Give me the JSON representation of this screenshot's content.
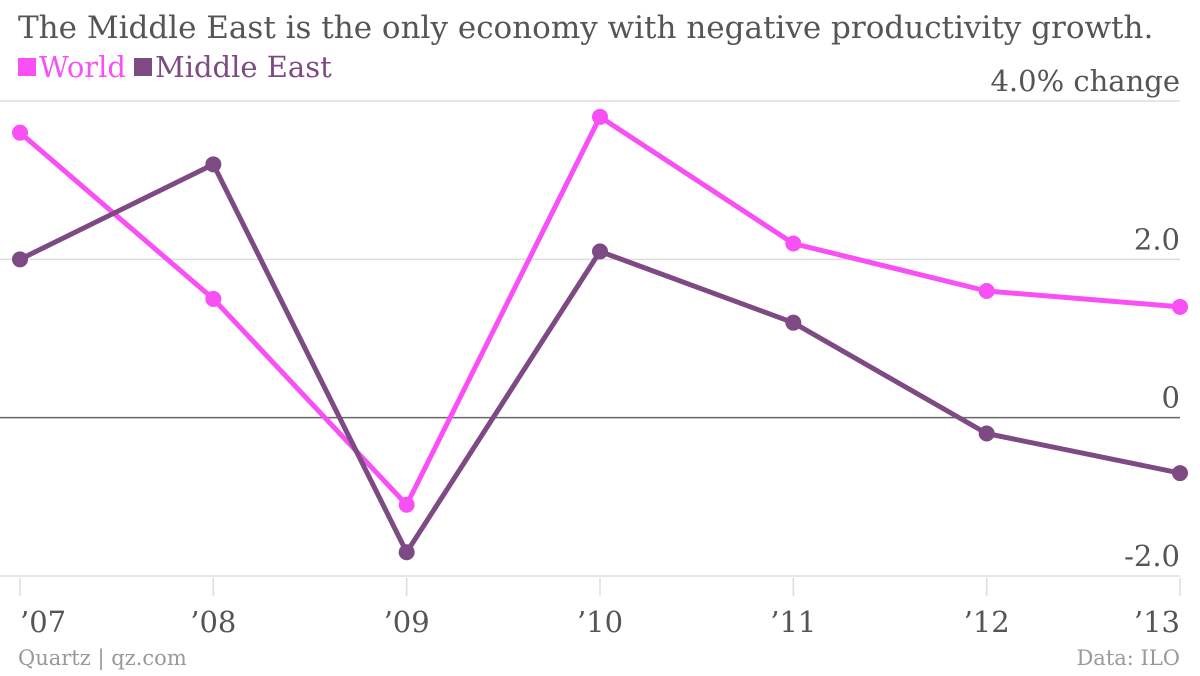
{
  "header": {
    "title": "The Middle East is the only economy with negative productivity growth."
  },
  "legend": [
    {
      "label": "World",
      "color": "#f850f4"
    },
    {
      "label": "Middle East",
      "color": "#7d4a84"
    }
  ],
  "footer": {
    "source_left": "Quartz | qz.com",
    "source_right": "Data: ILO"
  },
  "chart_data": {
    "type": "line",
    "title": "The Middle East is the only economy with negative productivity growth.",
    "categories": [
      "’07",
      "’08",
      "’09",
      "’10",
      "’11",
      "’12",
      "’13"
    ],
    "series": [
      {
        "name": "World",
        "color": "#f850f4",
        "values": [
          3.6,
          1.5,
          -1.1,
          3.8,
          2.2,
          1.6,
          1.4
        ]
      },
      {
        "name": "Middle East",
        "color": "#7d4a84",
        "values": [
          2.0,
          3.2,
          -1.7,
          2.1,
          1.2,
          -0.2,
          -0.7
        ]
      }
    ],
    "ylim": [
      -2.0,
      4.0
    ],
    "y_ticks": [
      {
        "value": 4.0,
        "label": "4.0% change"
      },
      {
        "value": 2.0,
        "label": "2.0"
      },
      {
        "value": 0,
        "label": "0"
      },
      {
        "value": -2.0,
        "label": "-2.0"
      }
    ],
    "y_axis_position": "right",
    "grid": true,
    "legend_position": "top-left"
  }
}
